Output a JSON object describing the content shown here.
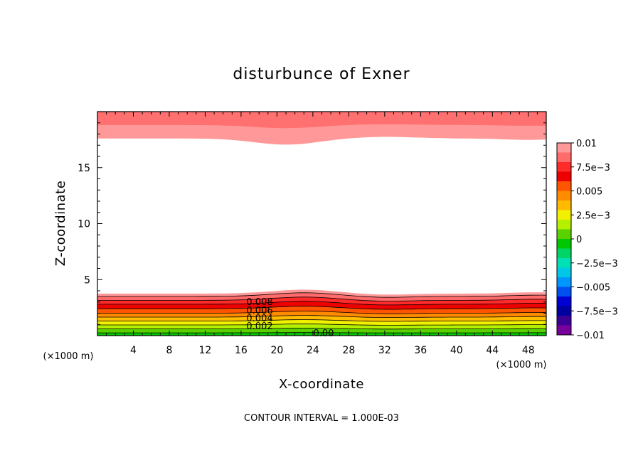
{
  "chart_data": {
    "type": "heatmap",
    "subtype": "filled-contour",
    "title": "disturbunce of Exner",
    "xlabel": "X-coordinate",
    "ylabel": "Z-coordinate",
    "x_unit": "(×1000 m)",
    "y_unit": "(×1000 m)",
    "xlim": [
      0,
      50
    ],
    "ylim": [
      0,
      20
    ],
    "x_ticks": [
      4,
      8,
      12,
      16,
      20,
      24,
      28,
      32,
      36,
      40,
      44,
      48
    ],
    "y_ticks": [
      5,
      10,
      15
    ],
    "contour_interval_text": "CONTOUR INTERVAL = 1.000E-03",
    "contour_labels": [
      "0.008",
      "0.006",
      "0.004",
      "0.002",
      "0.00"
    ],
    "colorbar": {
      "range": [
        -0.01,
        0.01
      ],
      "tick_labels": [
        "0.01",
        "7.5e−3",
        "0.005",
        "2.5e−3",
        "0",
        "−2.5e−3",
        "−0.005",
        "−7.5e−3",
        "−0.01"
      ],
      "colors": [
        "#ff9999",
        "#ff6b6b",
        "#ff2a2a",
        "#ee0000",
        "#ff5500",
        "#ff8c00",
        "#ffbb00",
        "#f0f000",
        "#b4f000",
        "#5ad200",
        "#00c800",
        "#00d464",
        "#00e0b4",
        "#00c8e6",
        "#0096ff",
        "#0050f0",
        "#0000d2",
        "#0000a0",
        "#3c0096",
        "#78009b"
      ]
    },
    "surface_contours_top": [
      {
        "level": 0.01,
        "color": "#ff9999",
        "depth_z": 2.4
      },
      {
        "level": 0.009,
        "color": "#ff7070",
        "depth_z": 1.2
      }
    ],
    "surface_contours_bottom": [
      {
        "level": 0.01,
        "color": "#ff9999",
        "height_z": 3.75
      },
      {
        "level": 0.009,
        "color": "#ff6b6b",
        "height_z": 3.5
      },
      {
        "level": 0.008,
        "color": "#ff2a2a",
        "height_z": 3.15
      },
      {
        "level": 0.007,
        "color": "#ee0000",
        "height_z": 2.8
      },
      {
        "level": 0.006,
        "color": "#ff5500",
        "height_z": 2.4
      },
      {
        "level": 0.005,
        "color": "#ff8c00",
        "height_z": 2.0
      },
      {
        "level": 0.004,
        "color": "#ffbb00",
        "height_z": 1.65
      },
      {
        "level": 0.003,
        "color": "#f0f000",
        "height_z": 1.3
      },
      {
        "level": 0.002,
        "color": "#b4f000",
        "height_z": 0.95
      },
      {
        "level": 0.001,
        "color": "#5ad200",
        "height_z": 0.6
      },
      {
        "level": 0.0,
        "color": "#00c800",
        "height_z": 0.25
      }
    ]
  }
}
